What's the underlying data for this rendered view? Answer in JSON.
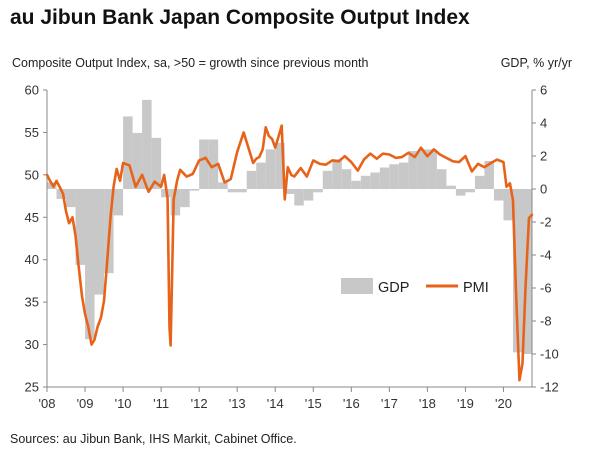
{
  "title": "au Jibun Bank Japan Composite Output Index",
  "subtitle_left": "Composite Output Index, sa, >50 = growth since previous month",
  "subtitle_right": "GDP, % yr/yr",
  "source": "Sources: au Jibun Bank, IHS Markit, Cabinet Office.",
  "colors": {
    "gdp": "#c8c8c8",
    "pmi": "#e8631a",
    "axis": "#888888",
    "text": "#222222"
  },
  "chart_data": {
    "type": "bar+line",
    "title": "au Jibun Bank Japan Composite Output Index",
    "x_ticks": [
      "'08",
      "'09",
      "'10",
      "'11",
      "'12",
      "'13",
      "'14",
      "'15",
      "'16",
      "'17",
      "'18",
      "'19",
      "'20"
    ],
    "y_left": {
      "label": "Composite Output Index, sa, >50 = growth since previous month",
      "lim": [
        25,
        60
      ],
      "ticks": [
        25,
        30,
        35,
        40,
        45,
        50,
        55,
        60
      ]
    },
    "y_right": {
      "label": "GDP, % yr/yr",
      "lim": [
        -12,
        6
      ],
      "ticks": [
        -12,
        -10,
        -8,
        -6,
        -4,
        -2,
        0,
        2,
        4,
        6
      ]
    },
    "legend": [
      "GDP",
      "PMI"
    ],
    "gdp": {
      "name": "GDP",
      "axis": "right",
      "quarters": [
        "2008Q1",
        "2008Q2",
        "2008Q3",
        "2008Q4",
        "2009Q1",
        "2009Q2",
        "2009Q3",
        "2009Q4",
        "2010Q1",
        "2010Q2",
        "2010Q3",
        "2010Q4",
        "2011Q1",
        "2011Q2",
        "2011Q3",
        "2011Q4",
        "2012Q1",
        "2012Q2",
        "2012Q3",
        "2012Q4",
        "2013Q1",
        "2013Q2",
        "2013Q3",
        "2013Q4",
        "2014Q1",
        "2014Q2",
        "2014Q3",
        "2014Q4",
        "2015Q1",
        "2015Q2",
        "2015Q3",
        "2015Q4",
        "2016Q1",
        "2016Q2",
        "2016Q3",
        "2016Q4",
        "2017Q1",
        "2017Q2",
        "2017Q3",
        "2017Q4",
        "2018Q1",
        "2018Q2",
        "2018Q3",
        "2018Q4",
        "2019Q1",
        "2019Q2",
        "2019Q3",
        "2019Q4",
        "2020Q1",
        "2020Q2",
        "2020Q3"
      ],
      "values": [
        0.4,
        -0.6,
        -1.1,
        -4.6,
        -9.1,
        -6.4,
        -5.1,
        -1.6,
        4.4,
        3.4,
        5.4,
        3.1,
        -0.5,
        -1.6,
        -1.1,
        -0.1,
        3.0,
        3.0,
        0.4,
        -0.2,
        -0.2,
        1.1,
        1.6,
        2.4,
        2.8,
        -0.3,
        -1.0,
        -0.7,
        -0.2,
        1.1,
        1.8,
        1.2,
        0.5,
        0.8,
        1.0,
        1.3,
        1.5,
        1.6,
        2.3,
        2.4,
        2.4,
        1.2,
        0.2,
        -0.4,
        -0.2,
        0.8,
        1.7,
        -0.7,
        -1.9,
        -9.9,
        -10.0
      ]
    },
    "pmi": {
      "name": "PMI",
      "axis": "left",
      "x": [
        2008.0,
        2008.08,
        2008.17,
        2008.25,
        2008.33,
        2008.42,
        2008.5,
        2008.58,
        2008.67,
        2008.75,
        2008.83,
        2008.92,
        2009.0,
        2009.08,
        2009.17,
        2009.25,
        2009.33,
        2009.42,
        2009.5,
        2009.58,
        2009.67,
        2009.75,
        2009.83,
        2009.92,
        2010.0,
        2010.17,
        2010.33,
        2010.5,
        2010.67,
        2010.83,
        2011.0,
        2011.08,
        2011.17,
        2011.22,
        2011.25,
        2011.33,
        2011.42,
        2011.5,
        2011.67,
        2011.83,
        2012.0,
        2012.17,
        2012.33,
        2012.5,
        2012.67,
        2012.83,
        2013.0,
        2013.17,
        2013.33,
        2013.42,
        2013.5,
        2013.58,
        2013.67,
        2013.75,
        2013.83,
        2013.92,
        2014.0,
        2014.17,
        2014.25,
        2014.33,
        2014.42,
        2014.5,
        2014.67,
        2014.83,
        2015.0,
        2015.17,
        2015.33,
        2015.5,
        2015.67,
        2015.83,
        2016.0,
        2016.17,
        2016.33,
        2016.5,
        2016.67,
        2016.83,
        2017.0,
        2017.17,
        2017.33,
        2017.5,
        2017.67,
        2017.83,
        2018.0,
        2018.17,
        2018.33,
        2018.5,
        2018.67,
        2018.83,
        2019.0,
        2019.17,
        2019.33,
        2019.5,
        2019.67,
        2019.83,
        2020.0,
        2020.08,
        2020.17,
        2020.25,
        2020.33,
        2020.42,
        2020.5,
        2020.58,
        2020.67,
        2020.75
      ],
      "values": [
        50.0,
        49.3,
        48.6,
        49.3,
        48.6,
        47.8,
        45.7,
        44.3,
        45.0,
        42.8,
        39.3,
        35.7,
        33.6,
        32.2,
        30.0,
        30.6,
        32.1,
        33.2,
        35.2,
        39.7,
        45.0,
        48.6,
        50.7,
        49.3,
        51.4,
        51.1,
        48.6,
        50.0,
        48.0,
        49.2,
        48.6,
        50.0,
        47.2,
        32.0,
        29.9,
        47.1,
        49.3,
        50.6,
        49.8,
        50.1,
        51.7,
        52.0,
        50.9,
        51.3,
        49.1,
        49.5,
        52.7,
        55.0,
        52.7,
        51.4,
        51.9,
        52.1,
        53.0,
        55.6,
        54.6,
        54.2,
        53.2,
        55.8,
        47.1,
        50.9,
        50.0,
        49.8,
        50.8,
        49.8,
        51.7,
        51.3,
        51.2,
        51.7,
        51.6,
        52.2,
        51.5,
        50.5,
        51.8,
        52.5,
        51.9,
        52.5,
        52.4,
        52.0,
        52.1,
        52.6,
        52.1,
        53.2,
        52.2,
        53.0,
        52.4,
        52.0,
        51.6,
        51.5,
        52.2,
        50.4,
        51.3,
        50.9,
        51.4,
        51.8,
        51.5,
        48.6,
        49.0,
        47.0,
        36.2,
        25.8,
        27.8,
        36.8,
        44.9,
        45.3
      ]
    }
  }
}
